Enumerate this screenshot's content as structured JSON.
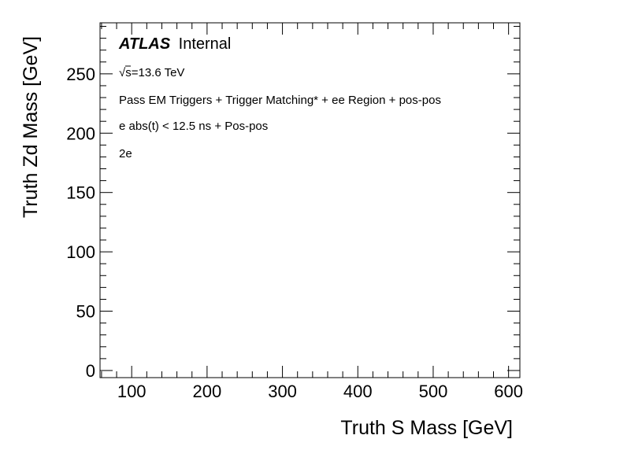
{
  "chart_data": {
    "type": "scatter",
    "title": "",
    "xlabel": "Truth S Mass [GeV]",
    "ylabel": "Truth Zd Mass [GeV]",
    "xlim": [
      58,
      615
    ],
    "ylim": [
      -6,
      293
    ],
    "x_ticks": [
      100,
      200,
      300,
      400,
      500,
      600
    ],
    "y_ticks": [
      0,
      50,
      100,
      150,
      200,
      250
    ],
    "x_minor_step": 20,
    "y_minor_step": 10,
    "grid": false,
    "legend": "none",
    "series": [
      {
        "values": []
      }
    ],
    "annotations": {
      "experiment": "ATLAS",
      "status": "Internal",
      "energy_sqrt": "√",
      "energy_rest": "s=13.6 TeV",
      "selection_1": "Pass EM Triggers + Trigger Matching* + ee Region + pos-pos",
      "selection_2": "e abs(t) < 12.5 ns + Pos-pos",
      "channel": "2e"
    }
  }
}
